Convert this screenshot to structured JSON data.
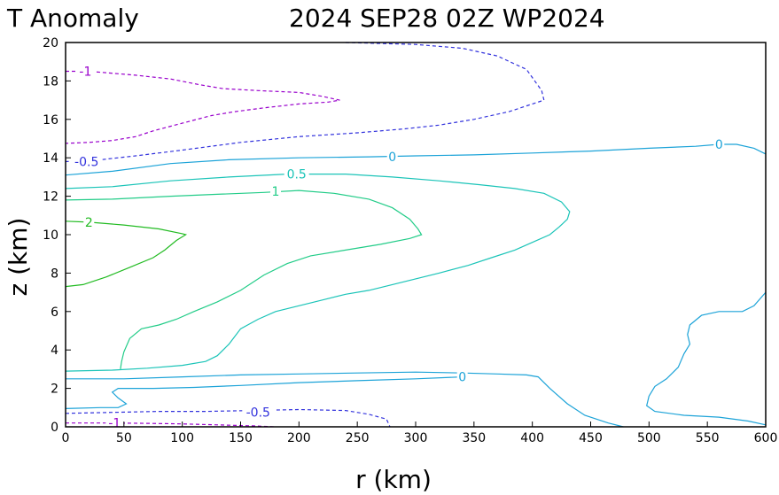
{
  "title": {
    "left": "T Anomaly",
    "right": "2024 SEP28 02Z   WP2024"
  },
  "chart_data": {
    "type": "contour",
    "title": "T Anomaly     2024 SEP28 02Z   WP2024",
    "xlabel": "r (km)",
    "ylabel": "z (km)",
    "xlim": [
      0,
      600
    ],
    "ylim": [
      0,
      20
    ],
    "x_ticks": [
      0,
      50,
      100,
      150,
      200,
      250,
      300,
      350,
      400,
      450,
      500,
      550,
      600
    ],
    "y_ticks": [
      0,
      2,
      4,
      6,
      8,
      10,
      12,
      14,
      16,
      18,
      20
    ],
    "grid": false,
    "colors": {
      "-1": "#9900cc",
      "-0.5": "#3333dd",
      "0": "#1ca3d8",
      "0.5": "#1bc4b8",
      "1": "#22cc88",
      "2": "#22bb22"
    },
    "contours": [
      {
        "level": -1,
        "dashed": true,
        "points": [
          [
            0,
            18.5
          ],
          [
            20,
            18.5
          ],
          [
            60,
            18.3
          ],
          [
            90,
            18.1
          ],
          [
            115,
            17.8
          ],
          [
            135,
            17.6
          ],
          [
            165,
            17.5
          ],
          [
            200,
            17.4
          ],
          [
            220,
            17.2
          ],
          [
            235,
            17.0
          ],
          [
            225,
            16.9
          ],
          [
            200,
            16.8
          ],
          [
            170,
            16.6
          ],
          [
            145,
            16.4
          ],
          [
            125,
            16.2
          ],
          [
            100,
            15.8
          ],
          [
            75,
            15.4
          ],
          [
            60,
            15.1
          ],
          [
            40,
            14.9
          ],
          [
            20,
            14.8
          ],
          [
            0,
            14.75
          ]
        ]
      },
      {
        "level": -1,
        "dashed": true,
        "points": [
          [
            0,
            0.2
          ],
          [
            40,
            0.2
          ],
          [
            70,
            0.18
          ],
          [
            100,
            0.15
          ],
          [
            130,
            0.1
          ],
          [
            160,
            0.05
          ],
          [
            180,
            0.0
          ]
        ]
      },
      {
        "level": -0.5,
        "dashed": true,
        "points": [
          [
            240,
            20.0
          ],
          [
            300,
            19.9
          ],
          [
            340,
            19.7
          ],
          [
            370,
            19.3
          ],
          [
            395,
            18.6
          ],
          [
            408,
            17.5
          ],
          [
            410,
            17.0
          ],
          [
            400,
            16.8
          ],
          [
            380,
            16.4
          ],
          [
            350,
            16.0
          ],
          [
            320,
            15.7
          ],
          [
            290,
            15.5
          ],
          [
            250,
            15.3
          ],
          [
            200,
            15.1
          ],
          [
            150,
            14.8
          ],
          [
            100,
            14.4
          ],
          [
            60,
            14.1
          ],
          [
            30,
            13.9
          ],
          [
            0,
            13.8
          ]
        ]
      },
      {
        "level": -0.5,
        "dashed": true,
        "points": [
          [
            0,
            0.7
          ],
          [
            40,
            0.75
          ],
          [
            80,
            0.8
          ],
          [
            120,
            0.8
          ],
          [
            160,
            0.85
          ],
          [
            200,
            0.9
          ],
          [
            240,
            0.85
          ],
          [
            260,
            0.65
          ],
          [
            275,
            0.4
          ],
          [
            278,
            0.0
          ]
        ]
      },
      {
        "level": 0,
        "dashed": false,
        "points": [
          [
            0,
            13.1
          ],
          [
            40,
            13.3
          ],
          [
            90,
            13.7
          ],
          [
            140,
            13.9
          ],
          [
            200,
            14.0
          ],
          [
            260,
            14.05
          ],
          [
            300,
            14.1
          ],
          [
            350,
            14.15
          ],
          [
            400,
            14.25
          ],
          [
            450,
            14.35
          ],
          [
            500,
            14.5
          ],
          [
            540,
            14.6
          ],
          [
            560,
            14.7
          ],
          [
            575,
            14.7
          ],
          [
            590,
            14.5
          ],
          [
            600,
            14.2
          ]
        ]
      },
      {
        "level": 0,
        "dashed": false,
        "points": [
          [
            0,
            2.5
          ],
          [
            50,
            2.5
          ],
          [
            100,
            2.6
          ],
          [
            150,
            2.7
          ],
          [
            200,
            2.75
          ],
          [
            250,
            2.8
          ],
          [
            300,
            2.85
          ],
          [
            340,
            2.8
          ],
          [
            370,
            2.75
          ],
          [
            395,
            2.7
          ],
          [
            405,
            2.6
          ],
          [
            415,
            2.0
          ],
          [
            430,
            1.2
          ],
          [
            445,
            0.6
          ],
          [
            465,
            0.2
          ],
          [
            478,
            0.0
          ]
        ]
      },
      {
        "level": 0,
        "dashed": false,
        "points": [
          [
            0,
            0.95
          ],
          [
            30,
            1.0
          ],
          [
            45,
            1.0
          ],
          [
            52,
            1.2
          ],
          [
            45,
            1.5
          ],
          [
            40,
            1.8
          ],
          [
            45,
            2.0
          ],
          [
            75,
            2.0
          ],
          [
            110,
            2.05
          ],
          [
            150,
            2.15
          ],
          [
            200,
            2.3
          ],
          [
            250,
            2.4
          ],
          [
            300,
            2.5
          ],
          [
            340,
            2.6
          ]
        ]
      },
      {
        "level": 0,
        "dashed": false,
        "points": [
          [
            600,
            7.0
          ],
          [
            590,
            6.3
          ],
          [
            580,
            6.0
          ],
          [
            560,
            6.0
          ],
          [
            545,
            5.8
          ],
          [
            535,
            5.3
          ],
          [
            533,
            4.8
          ],
          [
            535,
            4.3
          ],
          [
            530,
            3.8
          ],
          [
            525,
            3.1
          ],
          [
            515,
            2.5
          ],
          [
            505,
            2.1
          ],
          [
            500,
            1.6
          ],
          [
            498,
            1.1
          ],
          [
            505,
            0.8
          ],
          [
            530,
            0.6
          ],
          [
            560,
            0.5
          ],
          [
            585,
            0.3
          ],
          [
            600,
            0.1
          ]
        ]
      },
      {
        "level": 0.5,
        "dashed": false,
        "points": [
          [
            0,
            12.4
          ],
          [
            40,
            12.5
          ],
          [
            90,
            12.8
          ],
          [
            140,
            13.0
          ],
          [
            190,
            13.15
          ],
          [
            240,
            13.15
          ],
          [
            280,
            13.0
          ],
          [
            320,
            12.8
          ],
          [
            355,
            12.6
          ],
          [
            385,
            12.4
          ],
          [
            410,
            12.15
          ],
          [
            425,
            11.7
          ],
          [
            432,
            11.2
          ],
          [
            430,
            10.8
          ],
          [
            423,
            10.4
          ],
          [
            415,
            10.0
          ],
          [
            400,
            9.6
          ],
          [
            385,
            9.2
          ],
          [
            365,
            8.8
          ],
          [
            345,
            8.4
          ],
          [
            320,
            8.0
          ],
          [
            300,
            7.7
          ],
          [
            280,
            7.4
          ],
          [
            260,
            7.1
          ],
          [
            240,
            6.9
          ],
          [
            220,
            6.6
          ],
          [
            200,
            6.3
          ],
          [
            180,
            6.0
          ],
          [
            165,
            5.6
          ],
          [
            150,
            5.1
          ],
          [
            140,
            4.3
          ],
          [
            130,
            3.7
          ],
          [
            120,
            3.4
          ],
          [
            100,
            3.2
          ],
          [
            70,
            3.05
          ],
          [
            40,
            2.95
          ],
          [
            0,
            2.9
          ]
        ]
      },
      {
        "level": 1,
        "dashed": false,
        "points": [
          [
            0,
            11.8
          ],
          [
            40,
            11.85
          ],
          [
            90,
            12.0
          ],
          [
            130,
            12.1
          ],
          [
            170,
            12.2
          ],
          [
            200,
            12.3
          ],
          [
            230,
            12.15
          ],
          [
            260,
            11.85
          ],
          [
            280,
            11.4
          ],
          [
            295,
            10.8
          ],
          [
            302,
            10.3
          ],
          [
            305,
            10.0
          ],
          [
            295,
            9.8
          ],
          [
            270,
            9.5
          ],
          [
            240,
            9.2
          ],
          [
            210,
            8.9
          ],
          [
            190,
            8.5
          ],
          [
            170,
            7.9
          ],
          [
            150,
            7.1
          ],
          [
            130,
            6.5
          ],
          [
            110,
            6.0
          ],
          [
            95,
            5.6
          ],
          [
            80,
            5.3
          ],
          [
            65,
            5.1
          ],
          [
            55,
            4.6
          ],
          [
            50,
            3.9
          ],
          [
            48,
            3.4
          ],
          [
            47,
            3.0
          ]
        ]
      },
      {
        "level": 2,
        "dashed": false,
        "points": [
          [
            0,
            10.7
          ],
          [
            20,
            10.65
          ],
          [
            50,
            10.5
          ],
          [
            80,
            10.3
          ],
          [
            100,
            10.05
          ],
          [
            103,
            10.0
          ],
          [
            95,
            9.7
          ],
          [
            85,
            9.2
          ],
          [
            75,
            8.8
          ],
          [
            55,
            8.3
          ],
          [
            35,
            7.8
          ],
          [
            15,
            7.4
          ],
          [
            0,
            7.3
          ]
        ]
      }
    ],
    "contour_labels": [
      {
        "level": "-1",
        "text": "-1",
        "x": 17,
        "y": 18.5
      },
      {
        "level": "-1",
        "text": "-1",
        "x": 42,
        "y": 0.2
      },
      {
        "level": "-0.5",
        "text": "-0.5",
        "x": 18,
        "y": 13.8
      },
      {
        "level": "-0.5",
        "text": "-0.5",
        "x": 165,
        "y": 0.75
      },
      {
        "level": "0",
        "text": "0",
        "x": 280,
        "y": 14.05
      },
      {
        "level": "0",
        "text": "0",
        "x": 560,
        "y": 14.7
      },
      {
        "level": "0",
        "text": "0",
        "x": 340,
        "y": 2.6
      },
      {
        "level": "0.5",
        "text": "0.5",
        "x": 198,
        "y": 13.15
      },
      {
        "level": "1",
        "text": "1",
        "x": 180,
        "y": 12.25
      },
      {
        "level": "2",
        "text": "2",
        "x": 20,
        "y": 10.65
      }
    ]
  }
}
